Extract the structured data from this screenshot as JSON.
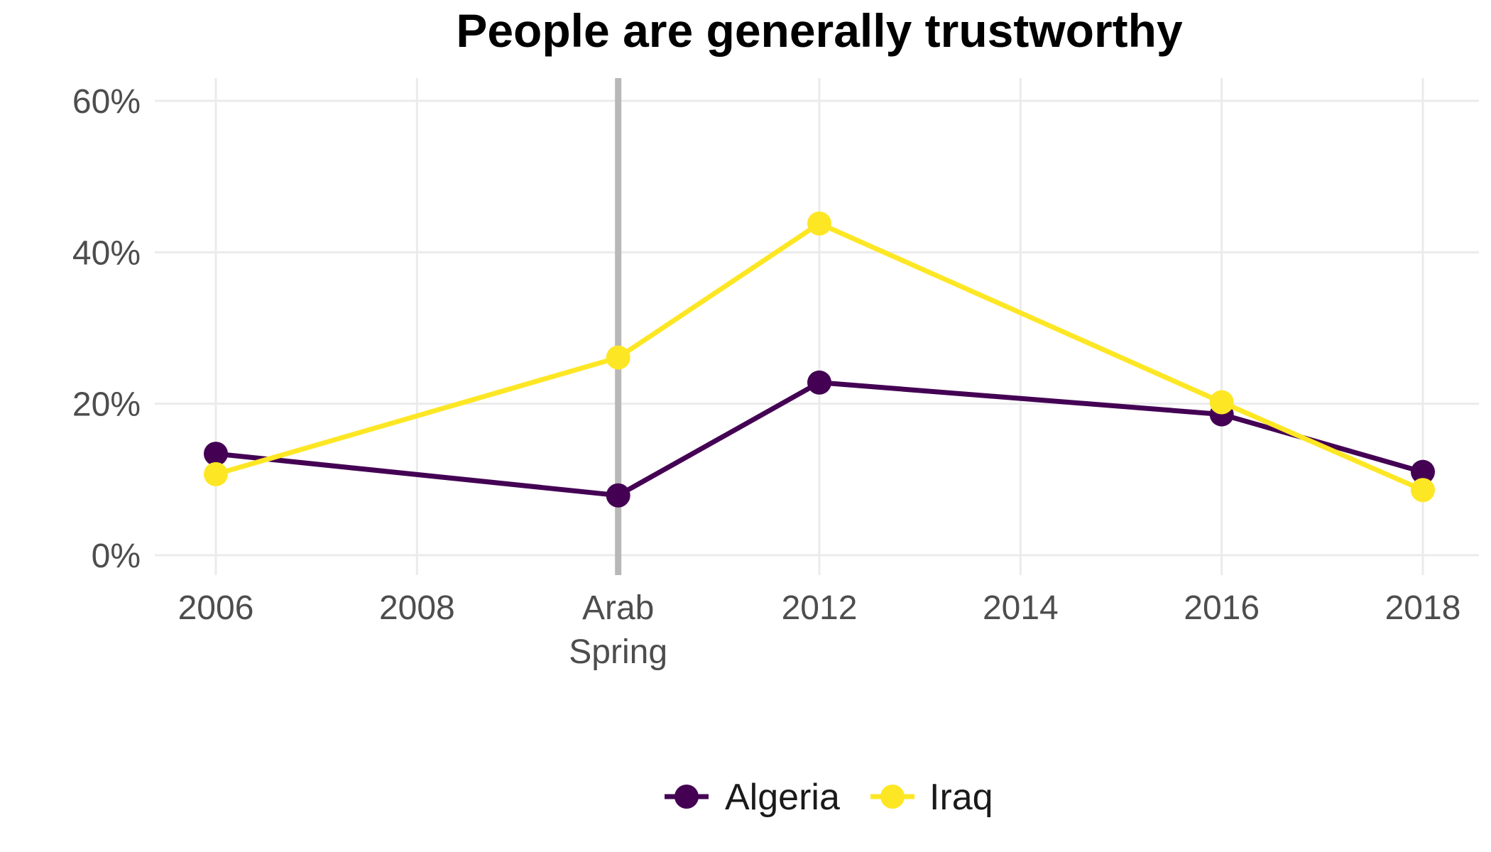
{
  "chart_data": {
    "type": "line",
    "title": "People are generally trustworthy",
    "xlabel": "",
    "ylabel": "",
    "x_range": [
      2006,
      2018
    ],
    "ylim": [
      0,
      60
    ],
    "x_ticks": [
      {
        "value": 2006,
        "label": "2006"
      },
      {
        "value": 2008,
        "label": "2008"
      },
      {
        "value": 2010,
        "label": "Arab Spring"
      },
      {
        "value": 2012,
        "label": "2012"
      },
      {
        "value": 2014,
        "label": "2014"
      },
      {
        "value": 2016,
        "label": "2016"
      },
      {
        "value": 2018,
        "label": "2018"
      }
    ],
    "y_ticks": [
      {
        "value": 0,
        "label": "0%"
      },
      {
        "value": 20,
        "label": "20%"
      },
      {
        "value": 40,
        "label": "40%"
      },
      {
        "value": 60,
        "label": "60%"
      }
    ],
    "reference_line": {
      "x": 2010,
      "color": "#b8b8b8"
    },
    "grid": true,
    "legend_position": "bottom",
    "series": [
      {
        "name": "Algeria",
        "color": "#440154",
        "points": [
          {
            "x": 2006,
            "y": 13.4
          },
          {
            "x": 2010,
            "y": 7.9
          },
          {
            "x": 2012,
            "y": 22.8
          },
          {
            "x": 2016,
            "y": 18.6
          },
          {
            "x": 2018,
            "y": 11.0
          }
        ]
      },
      {
        "name": "Iraq",
        "color": "#fde725",
        "points": [
          {
            "x": 2006,
            "y": 10.7
          },
          {
            "x": 2010,
            "y": 26.1
          },
          {
            "x": 2012,
            "y": 43.8
          },
          {
            "x": 2016,
            "y": 20.2
          },
          {
            "x": 2018,
            "y": 8.6
          }
        ]
      }
    ]
  }
}
